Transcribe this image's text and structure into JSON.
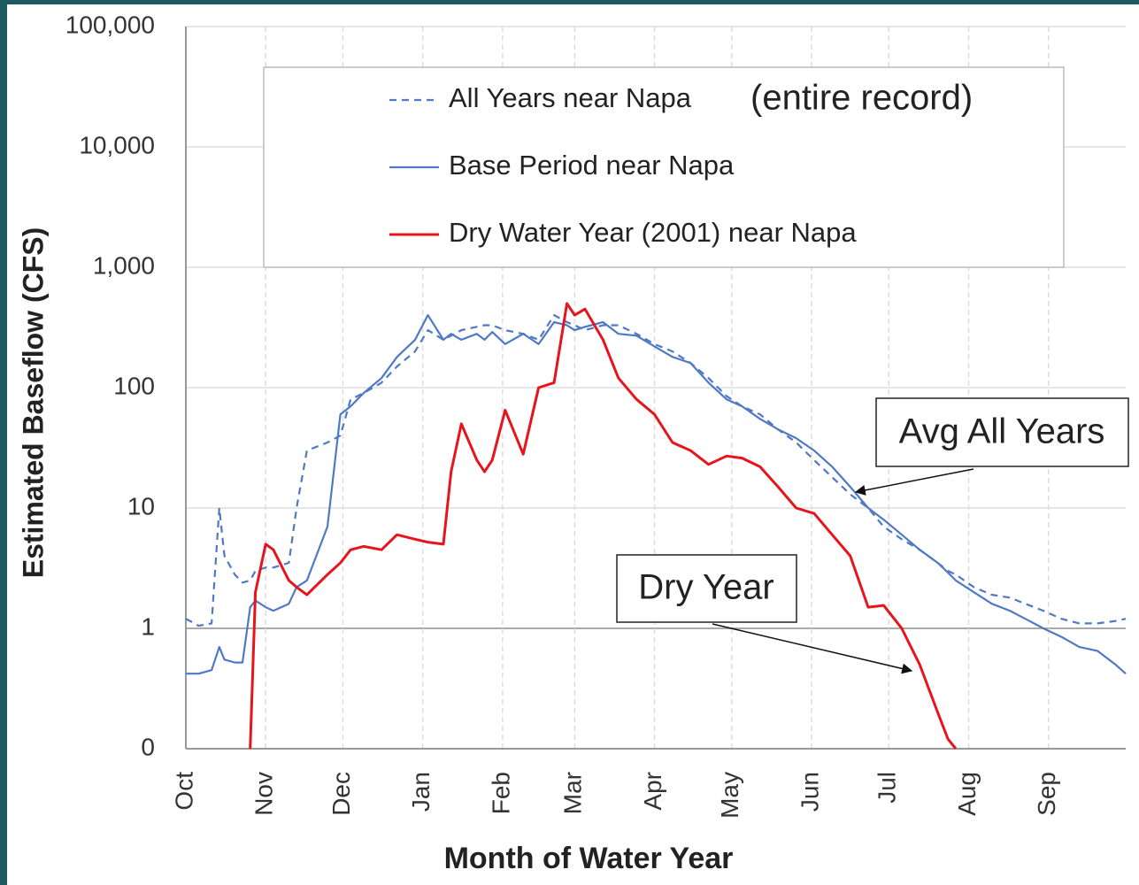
{
  "chart_data": {
    "type": "line",
    "y_label": "Estimated Baseflow (CFS)",
    "x_label": "Month of Water Year",
    "log_y": true,
    "grid": true,
    "legend_note": "(entire record)",
    "annotations": [
      "Avg All Years",
      "Dry Year"
    ],
    "xlim": [
      0,
      365
    ],
    "xticks": [
      {
        "value": 0,
        "label": "Oct"
      },
      {
        "value": 31,
        "label": "Nov"
      },
      {
        "value": 61,
        "label": "Dec"
      },
      {
        "value": 92,
        "label": "Jan"
      },
      {
        "value": 123,
        "label": "Feb"
      },
      {
        "value": 151,
        "label": "Mar"
      },
      {
        "value": 182,
        "label": "Apr"
      },
      {
        "value": 212,
        "label": "May"
      },
      {
        "value": 243,
        "label": "Jun"
      },
      {
        "value": 273,
        "label": "Jul"
      },
      {
        "value": 304,
        "label": "Aug"
      },
      {
        "value": 335,
        "label": "Sep"
      }
    ],
    "ylim": [
      0.1,
      100000
    ],
    "yticks": [
      {
        "value": 0.1,
        "label": "0"
      },
      1,
      10,
      100,
      {
        "value": 1000,
        "label": "1,000"
      },
      {
        "value": 10000,
        "label": "10,000"
      },
      {
        "value": 100000,
        "label": "100,000"
      }
    ],
    "x": [
      0,
      5,
      10,
      13,
      15,
      19,
      22,
      25,
      27,
      31,
      34,
      40,
      43,
      47,
      55,
      60,
      64,
      69,
      76,
      82,
      89,
      94,
      100,
      103,
      107,
      113,
      116,
      119,
      124,
      131,
      137,
      143,
      148,
      151,
      155,
      162,
      168,
      175,
      182,
      189,
      196,
      203,
      210,
      216,
      223,
      230,
      237,
      244,
      251,
      258,
      265,
      271,
      278,
      285,
      292,
      296,
      299,
      306,
      313,
      320,
      326,
      333,
      340,
      347,
      354,
      361,
      365
    ],
    "series": [
      {
        "name": "All Years near Napa",
        "color": "#4f79c4",
        "dash": true,
        "values": [
          1.2,
          1.05,
          1.1,
          10,
          4,
          2.8,
          2.4,
          2.5,
          3,
          3.2,
          3.2,
          3.5,
          10,
          30,
          35,
          40,
          80,
          90,
          110,
          150,
          200,
          300,
          250,
          270,
          300,
          320,
          330,
          330,
          300,
          280,
          250,
          400,
          350,
          330,
          300,
          330,
          330,
          280,
          230,
          200,
          160,
          120,
          85,
          70,
          60,
          45,
          35,
          25,
          18,
          13,
          10,
          7,
          5.5,
          4.5,
          3.5,
          3,
          2.8,
          2.2,
          1.9,
          1.8,
          1.6,
          1.4,
          1.2,
          1.1,
          1.1,
          1.15,
          1.2
        ]
      },
      {
        "name": "Base Period near Napa",
        "color": "#4f79c4",
        "dash": false,
        "values": [
          0.42,
          0.42,
          0.45,
          0.7,
          0.55,
          0.52,
          0.52,
          1.5,
          1.7,
          1.5,
          1.4,
          1.6,
          2.2,
          2.5,
          7,
          60,
          70,
          90,
          120,
          180,
          250,
          400,
          250,
          280,
          250,
          280,
          250,
          290,
          230,
          280,
          230,
          350,
          330,
          300,
          320,
          350,
          280,
          270,
          220,
          180,
          160,
          110,
          80,
          70,
          55,
          45,
          38,
          30,
          22,
          15,
          10,
          8,
          6,
          4.5,
          3.5,
          2.9,
          2.5,
          2.0,
          1.6,
          1.4,
          1.2,
          1.0,
          0.85,
          0.7,
          0.65,
          0.5,
          0.42
        ]
      },
      {
        "name": "Dry Water Year (2001) near Napa",
        "color": "#e8141b",
        "dash": false,
        "values": [
          null,
          null,
          null,
          null,
          null,
          null,
          null,
          0.1,
          2,
          5,
          4.5,
          2.5,
          2.2,
          1.9,
          2.8,
          3.5,
          4.5,
          4.8,
          4.5,
          6,
          5.5,
          5.2,
          5,
          20,
          50,
          25,
          20,
          25,
          65,
          28,
          100,
          110,
          500,
          400,
          450,
          250,
          120,
          80,
          60,
          35,
          30,
          23,
          27,
          26,
          22,
          15,
          10,
          9,
          6,
          4,
          1.5,
          1.55,
          1.0,
          0.5,
          0.2,
          0.12,
          0.1,
          null,
          null,
          null,
          null,
          null,
          null,
          null,
          null,
          null,
          null
        ]
      }
    ]
  }
}
